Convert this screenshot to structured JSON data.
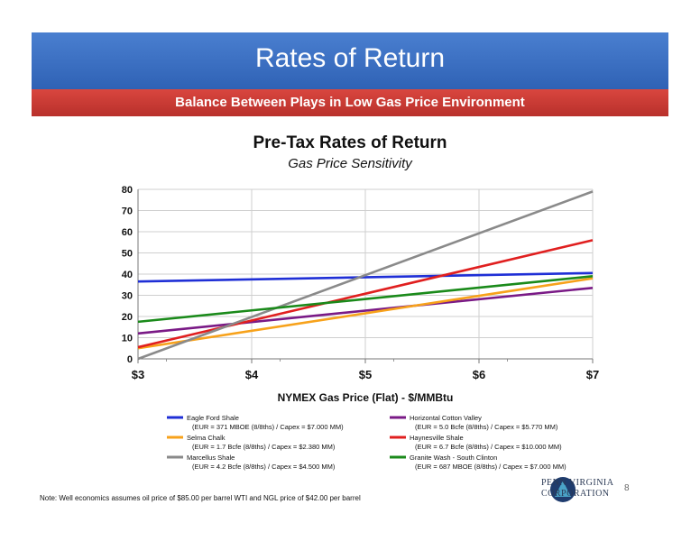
{
  "header": {
    "title": "Rates of Return",
    "subtitle": "Balance Between Plays in Low Gas Price Environment"
  },
  "chart_data": {
    "type": "line",
    "title": "Pre-Tax Rates of Return",
    "subtitle": "Gas Price Sensitivity",
    "xlabel": "NYMEX Gas Price (Flat) - $/MMBtu",
    "ylabel": "",
    "x": [
      3,
      7
    ],
    "x_tick_labels": [
      "$3",
      "$4",
      "$5",
      "$6",
      "$7"
    ],
    "y_tick_labels": [
      "0",
      "10",
      "20",
      "30",
      "40",
      "50",
      "60",
      "70",
      "80"
    ],
    "xlim": [
      3,
      7
    ],
    "ylim": [
      0,
      80
    ],
    "grid": true,
    "legend_position": "bottom",
    "series": [
      {
        "name": "Eagle Ford Shale",
        "detail": "(EUR = 371 MBOE (8/8ths) / Capex = $7.000 MM)",
        "color": "#1f2fd6",
        "values": [
          36.5,
          40.5
        ]
      },
      {
        "name": "Horizontal Cotton Valley",
        "detail": "(EUR = 5.0 Bcfe (8/8ths) / Capex = $5.770 MM)",
        "color": "#7a1a86",
        "values": [
          12,
          33.5
        ]
      },
      {
        "name": "Selma Chalk",
        "detail": "(EUR = 1.7 Bcfe (8/8ths) / Capex = $2.380 MM)",
        "color": "#f7a21b",
        "values": [
          5,
          38
        ]
      },
      {
        "name": "Haynesville Shale",
        "detail": "(EUR = 6.7 Bcfe (8/8ths) / Capex = $10.000 MM)",
        "color": "#e01f1f",
        "values": [
          5.5,
          56
        ]
      },
      {
        "name": "Marcellus Shale",
        "detail": "(EUR = 4.2 Bcfe (8/8ths) / Capex = $4.500 MM)",
        "color": "#8a8a8a",
        "values": [
          0,
          79
        ]
      },
      {
        "name": "Granite Wash - South Clinton",
        "detail": "(EUR = 687 MBOE (8/8ths) / Capex = $7.000 MM)",
        "color": "#1a8a1a",
        "values": [
          17.5,
          39
        ]
      }
    ]
  },
  "note": "Note: Well economics assumes oil price of $85.00 per barrel WTI and NGL price of $42.00 per barrel",
  "logo": {
    "line1": "PENN VIRGINIA",
    "line2": "CORPORATION"
  },
  "page_number": "8"
}
